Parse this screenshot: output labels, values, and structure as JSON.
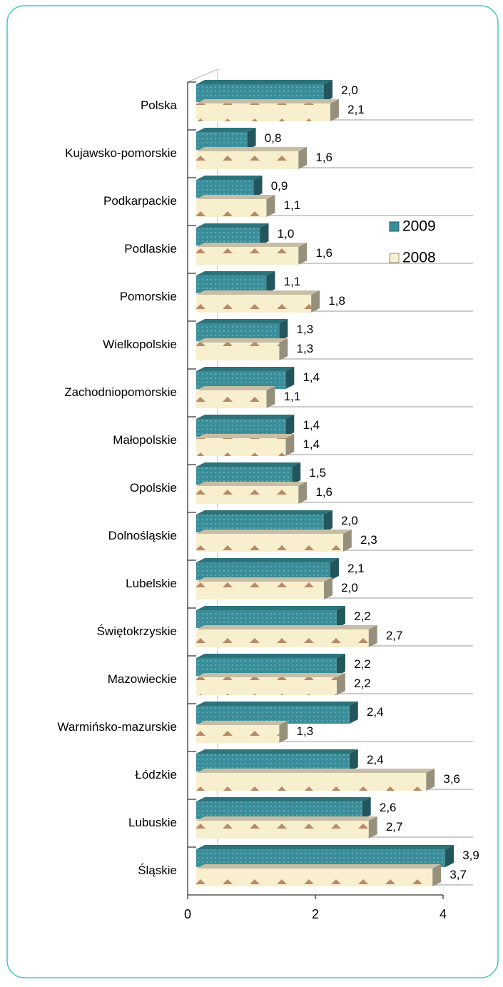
{
  "chart_data": {
    "type": "bar",
    "orientation": "horizontal",
    "categories": [
      "Polska",
      "Kujawsko-pomorskie",
      "Podkarpackie",
      "Podlaskie",
      "Pomorskie",
      "Wielkopolskie",
      "Zachodniopomorskie",
      "Małopolskie",
      "Opolskie",
      "Dolnośląskie",
      "Lubelskie",
      "Świętokrzyskie",
      "Mazowieckie",
      "Warmińsko-mazurskie",
      "Łódzkie",
      "Lubuskie",
      "Śląskie"
    ],
    "series": [
      {
        "name": "2009",
        "color": "#3a8e99",
        "values": [
          2.0,
          0.8,
          0.9,
          1.0,
          1.1,
          1.3,
          1.4,
          1.4,
          1.5,
          2.0,
          2.1,
          2.2,
          2.2,
          2.4,
          2.4,
          2.6,
          3.9
        ],
        "value_labels": [
          "2,0",
          "0,8",
          "0,9",
          "1,0",
          "1,1",
          "1,3",
          "1,4",
          "1,4",
          "1,5",
          "2,0",
          "2,1",
          "2,2",
          "2,2",
          "2,4",
          "2,4",
          "2,6",
          "3,9"
        ]
      },
      {
        "name": "2008",
        "color": "#f8efcf",
        "values": [
          2.1,
          1.6,
          1.1,
          1.6,
          1.8,
          1.3,
          1.1,
          1.4,
          1.6,
          2.3,
          2.0,
          2.7,
          2.2,
          1.3,
          3.6,
          2.7,
          3.7
        ],
        "value_labels": [
          "2,1",
          "1,6",
          "1,1",
          "1,6",
          "1,8",
          "1,3",
          "1,1",
          "1,4",
          "1,6",
          "2,3",
          "2,0",
          "2,7",
          "2,2",
          "1,3",
          "3,6",
          "2,7",
          "3,7"
        ]
      }
    ],
    "xlim": [
      0,
      4
    ],
    "xticks": [
      0,
      2,
      4
    ],
    "grid": true
  }
}
